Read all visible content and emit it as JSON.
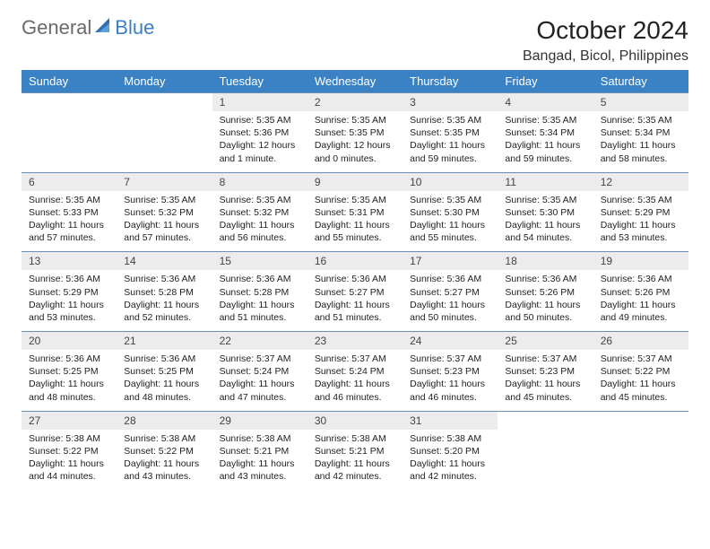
{
  "brand": {
    "part1": "General",
    "part2": "Blue"
  },
  "title": "October 2024",
  "location": "Bangad, Bicol, Philippines",
  "colors": {
    "header_bg": "#3b82c4",
    "header_text": "#ffffff",
    "daynum_bg": "#ececec",
    "rule": "#6a8fb5",
    "brand_blue": "#3b7fc4",
    "brand_gray": "#6a6a6a"
  },
  "dayHeaders": [
    "Sunday",
    "Monday",
    "Tuesday",
    "Wednesday",
    "Thursday",
    "Friday",
    "Saturday"
  ],
  "weeks": [
    [
      null,
      null,
      {
        "n": "1",
        "sr": "5:35 AM",
        "ss": "5:36 PM",
        "dl": "12 hours and 1 minute."
      },
      {
        "n": "2",
        "sr": "5:35 AM",
        "ss": "5:35 PM",
        "dl": "12 hours and 0 minutes."
      },
      {
        "n": "3",
        "sr": "5:35 AM",
        "ss": "5:35 PM",
        "dl": "11 hours and 59 minutes."
      },
      {
        "n": "4",
        "sr": "5:35 AM",
        "ss": "5:34 PM",
        "dl": "11 hours and 59 minutes."
      },
      {
        "n": "5",
        "sr": "5:35 AM",
        "ss": "5:34 PM",
        "dl": "11 hours and 58 minutes."
      }
    ],
    [
      {
        "n": "6",
        "sr": "5:35 AM",
        "ss": "5:33 PM",
        "dl": "11 hours and 57 minutes."
      },
      {
        "n": "7",
        "sr": "5:35 AM",
        "ss": "5:32 PM",
        "dl": "11 hours and 57 minutes."
      },
      {
        "n": "8",
        "sr": "5:35 AM",
        "ss": "5:32 PM",
        "dl": "11 hours and 56 minutes."
      },
      {
        "n": "9",
        "sr": "5:35 AM",
        "ss": "5:31 PM",
        "dl": "11 hours and 55 minutes."
      },
      {
        "n": "10",
        "sr": "5:35 AM",
        "ss": "5:30 PM",
        "dl": "11 hours and 55 minutes."
      },
      {
        "n": "11",
        "sr": "5:35 AM",
        "ss": "5:30 PM",
        "dl": "11 hours and 54 minutes."
      },
      {
        "n": "12",
        "sr": "5:35 AM",
        "ss": "5:29 PM",
        "dl": "11 hours and 53 minutes."
      }
    ],
    [
      {
        "n": "13",
        "sr": "5:36 AM",
        "ss": "5:29 PM",
        "dl": "11 hours and 53 minutes."
      },
      {
        "n": "14",
        "sr": "5:36 AM",
        "ss": "5:28 PM",
        "dl": "11 hours and 52 minutes."
      },
      {
        "n": "15",
        "sr": "5:36 AM",
        "ss": "5:28 PM",
        "dl": "11 hours and 51 minutes."
      },
      {
        "n": "16",
        "sr": "5:36 AM",
        "ss": "5:27 PM",
        "dl": "11 hours and 51 minutes."
      },
      {
        "n": "17",
        "sr": "5:36 AM",
        "ss": "5:27 PM",
        "dl": "11 hours and 50 minutes."
      },
      {
        "n": "18",
        "sr": "5:36 AM",
        "ss": "5:26 PM",
        "dl": "11 hours and 50 minutes."
      },
      {
        "n": "19",
        "sr": "5:36 AM",
        "ss": "5:26 PM",
        "dl": "11 hours and 49 minutes."
      }
    ],
    [
      {
        "n": "20",
        "sr": "5:36 AM",
        "ss": "5:25 PM",
        "dl": "11 hours and 48 minutes."
      },
      {
        "n": "21",
        "sr": "5:36 AM",
        "ss": "5:25 PM",
        "dl": "11 hours and 48 minutes."
      },
      {
        "n": "22",
        "sr": "5:37 AM",
        "ss": "5:24 PM",
        "dl": "11 hours and 47 minutes."
      },
      {
        "n": "23",
        "sr": "5:37 AM",
        "ss": "5:24 PM",
        "dl": "11 hours and 46 minutes."
      },
      {
        "n": "24",
        "sr": "5:37 AM",
        "ss": "5:23 PM",
        "dl": "11 hours and 46 minutes."
      },
      {
        "n": "25",
        "sr": "5:37 AM",
        "ss": "5:23 PM",
        "dl": "11 hours and 45 minutes."
      },
      {
        "n": "26",
        "sr": "5:37 AM",
        "ss": "5:22 PM",
        "dl": "11 hours and 45 minutes."
      }
    ],
    [
      {
        "n": "27",
        "sr": "5:38 AM",
        "ss": "5:22 PM",
        "dl": "11 hours and 44 minutes."
      },
      {
        "n": "28",
        "sr": "5:38 AM",
        "ss": "5:22 PM",
        "dl": "11 hours and 43 minutes."
      },
      {
        "n": "29",
        "sr": "5:38 AM",
        "ss": "5:21 PM",
        "dl": "11 hours and 43 minutes."
      },
      {
        "n": "30",
        "sr": "5:38 AM",
        "ss": "5:21 PM",
        "dl": "11 hours and 42 minutes."
      },
      {
        "n": "31",
        "sr": "5:38 AM",
        "ss": "5:20 PM",
        "dl": "11 hours and 42 minutes."
      },
      null,
      null
    ]
  ]
}
